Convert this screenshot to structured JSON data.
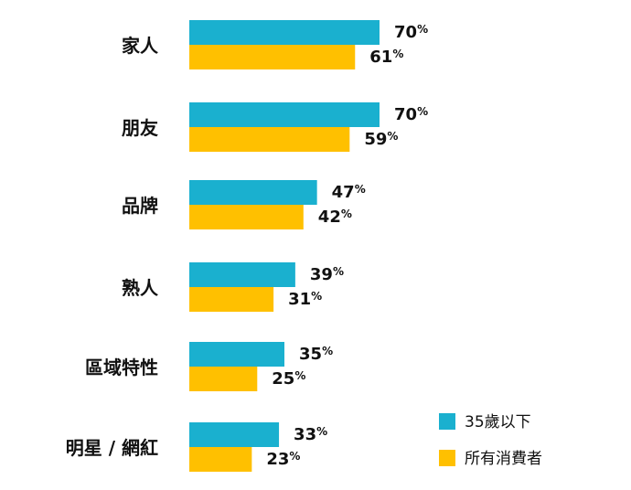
{
  "chart_data": {
    "type": "bar",
    "orientation": "horizontal",
    "categories": [
      "家人",
      "朋友",
      "品牌",
      "熟人",
      "區域特性",
      "明星 / 網紅"
    ],
    "series": [
      {
        "name": "35歲以下",
        "values": [
          70,
          70,
          47,
          39,
          35,
          33
        ],
        "color": "#1AB0CF"
      },
      {
        "name": "所有消費者",
        "values": [
          61,
          59,
          42,
          31,
          25,
          23
        ],
        "color": "#FFC000"
      }
    ],
    "value_suffix": "%",
    "xlim": [
      0,
      100
    ],
    "grid": false,
    "legend_position": "bottom-right",
    "title": "",
    "xlabel": "",
    "ylabel": ""
  }
}
